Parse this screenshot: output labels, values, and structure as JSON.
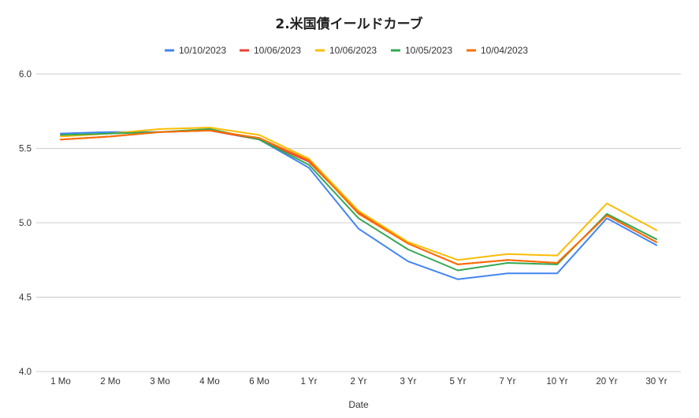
{
  "chart_data": {
    "type": "line",
    "title": "2.米国債イールドカーブ",
    "xlabel": "Date",
    "ylabel": "",
    "ylim": [
      4.0,
      6.0
    ],
    "yticks": [
      "4.0",
      "4.5",
      "5.0",
      "5.5",
      "6.0"
    ],
    "grid": true,
    "legend_position": "top",
    "categories": [
      "1 Mo",
      "2 Mo",
      "3 Mo",
      "4 Mo",
      "6 Mo",
      "1 Yr",
      "2 Yr",
      "3 Yr",
      "5 Yr",
      "7 Yr",
      "10 Yr",
      "20 Yr",
      "30 Yr"
    ],
    "series": [
      {
        "name": "10/10/2023",
        "color": "#4285f4",
        "values": [
          5.6,
          5.61,
          5.61,
          5.62,
          5.56,
          5.37,
          4.96,
          4.74,
          4.62,
          4.66,
          4.66,
          5.03,
          4.85
        ]
      },
      {
        "name": "10/06/2023",
        "color": "#ea4335",
        "values": [
          5.56,
          5.58,
          5.61,
          5.62,
          5.56,
          5.41,
          5.07,
          4.86,
          4.72,
          4.75,
          4.73,
          5.05,
          4.87
        ]
      },
      {
        "name": "10/06/2023",
        "color": "#fbbc04",
        "values": [
          5.58,
          5.6,
          5.63,
          5.64,
          5.59,
          5.43,
          5.08,
          4.87,
          4.75,
          4.79,
          4.78,
          5.13,
          4.95
        ]
      },
      {
        "name": "10/05/2023",
        "color": "#34a853",
        "values": [
          5.59,
          5.6,
          5.61,
          5.63,
          5.56,
          5.39,
          5.03,
          4.82,
          4.68,
          4.73,
          4.72,
          5.06,
          4.89
        ]
      },
      {
        "name": "10/04/2023",
        "color": "#ff6d01",
        "values": [
          5.56,
          5.58,
          5.61,
          5.62,
          5.57,
          5.42,
          5.06,
          4.86,
          4.72,
          4.75,
          4.73,
          5.05,
          4.87
        ]
      }
    ]
  }
}
